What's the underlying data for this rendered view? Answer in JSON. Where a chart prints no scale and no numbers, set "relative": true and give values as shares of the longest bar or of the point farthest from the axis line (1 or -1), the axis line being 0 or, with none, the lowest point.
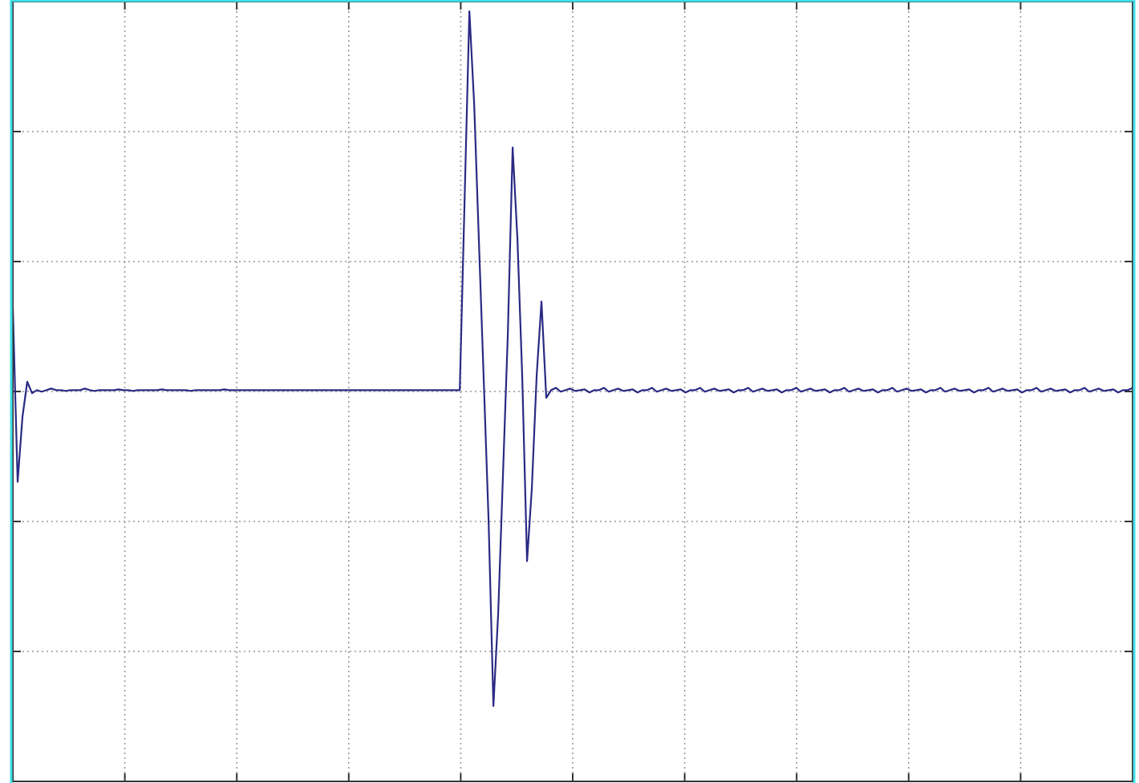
{
  "chart_data": {
    "type": "line",
    "relative": true,
    "grid": true,
    "tick_labels": false,
    "categories": [
      null,
      null,
      null,
      null,
      null,
      null,
      null,
      null,
      null,
      null,
      null,
      null,
      null,
      null,
      null,
      null,
      null,
      null,
      null,
      null,
      null,
      null,
      null,
      null,
      null,
      null,
      null,
      null,
      null,
      null,
      null,
      null,
      null,
      null,
      null,
      null,
      null,
      null,
      null,
      null,
      null,
      null,
      null,
      null,
      null,
      null,
      null,
      null,
      null,
      null,
      null,
      null,
      null,
      null,
      null,
      null,
      null,
      null,
      null,
      null,
      null,
      null,
      null,
      null,
      null,
      null,
      null,
      null,
      null,
      null,
      null,
      null,
      null,
      null,
      null,
      null,
      null,
      null,
      null,
      null,
      null,
      null,
      null,
      null,
      null,
      null,
      null,
      null,
      null,
      null,
      null,
      null,
      null,
      null,
      null,
      null,
      null,
      null,
      null,
      null,
      null,
      null,
      null,
      null,
      null,
      null,
      null,
      null,
      null,
      null,
      null,
      null,
      null,
      null,
      null,
      null,
      null,
      null,
      null,
      null,
      null,
      null,
      null,
      null,
      null,
      null,
      null,
      null,
      null,
      null,
      null,
      null,
      null,
      null,
      null,
      null,
      null,
      null,
      null,
      null,
      null,
      null,
      null,
      null,
      null,
      null,
      null,
      null,
      null,
      null,
      null,
      null,
      null,
      null,
      null,
      null,
      null,
      null,
      null,
      null,
      null,
      null,
      null,
      null,
      null,
      null,
      null,
      null,
      null,
      null,
      null,
      null,
      null,
      null,
      null,
      null,
      null,
      null,
      null,
      null,
      null,
      null,
      null,
      null,
      null,
      null,
      null,
      null,
      null,
      null,
      null,
      null,
      null,
      null,
      null,
      null,
      null,
      null,
      null,
      null,
      null,
      null,
      null,
      null,
      null,
      null,
      null,
      null,
      null,
      null,
      null,
      null,
      null,
      null,
      null,
      null,
      null,
      null,
      null,
      null,
      null,
      null,
      null,
      null,
      null,
      null,
      null,
      null,
      null,
      null,
      null,
      null,
      null,
      null
    ],
    "series": [
      {
        "color": "#2a2a84",
        "values": [
          0.615,
          0.389,
          0.473,
          0.519,
          0.504,
          0.508,
          0.506,
          0.508,
          0.51,
          0.508,
          0.508,
          0.507,
          0.508,
          0.508,
          0.508,
          0.51,
          0.508,
          0.507,
          0.508,
          0.508,
          0.508,
          0.508,
          0.509,
          0.508,
          0.508,
          0.507,
          0.508,
          0.508,
          0.508,
          0.508,
          0.508,
          0.509,
          0.508,
          0.508,
          0.508,
          0.508,
          0.508,
          0.507,
          0.508,
          0.508,
          0.508,
          0.508,
          0.508,
          0.508,
          0.509,
          0.508,
          0.508,
          0.508,
          0.508,
          0.508,
          0.508,
          0.508,
          0.508,
          0.508,
          0.508,
          0.508,
          0.508,
          0.508,
          0.508,
          0.508,
          0.508,
          0.508,
          0.508,
          0.508,
          0.508,
          0.508,
          0.508,
          0.508,
          0.508,
          0.508,
          0.508,
          0.508,
          0.508,
          0.508,
          0.508,
          0.508,
          0.508,
          0.508,
          0.508,
          0.508,
          0.508,
          0.508,
          0.508,
          0.508,
          0.508,
          0.508,
          0.508,
          0.508,
          0.508,
          0.508,
          0.508,
          0.508,
          0.508,
          0.508,
          0.754,
          1,
          0.879,
          0.698,
          0.519,
          0.338,
          0.098,
          0.219,
          0.4,
          0.581,
          0.823,
          0.704,
          0.525,
          0.286,
          0.381,
          0.527,
          0.623,
          0.498,
          0.508,
          0.511,
          0.506,
          0.508,
          0.51,
          0.507,
          0.508,
          0.509,
          0.505,
          0.508,
          0.508,
          0.511,
          0.506,
          0.508,
          0.51,
          0.507,
          0.508,
          0.509,
          0.505,
          0.508,
          0.508,
          0.511,
          0.506,
          0.508,
          0.51,
          0.507,
          0.508,
          0.509,
          0.505,
          0.508,
          0.508,
          0.511,
          0.506,
          0.508,
          0.51,
          0.507,
          0.508,
          0.509,
          0.505,
          0.508,
          0.508,
          0.511,
          0.506,
          0.508,
          0.51,
          0.507,
          0.508,
          0.509,
          0.505,
          0.508,
          0.508,
          0.511,
          0.506,
          0.508,
          0.51,
          0.507,
          0.508,
          0.509,
          0.505,
          0.508,
          0.508,
          0.511,
          0.506,
          0.508,
          0.51,
          0.507,
          0.508,
          0.509,
          0.505,
          0.508,
          0.508,
          0.511,
          0.506,
          0.508,
          0.51,
          0.507,
          0.508,
          0.509,
          0.505,
          0.508,
          0.508,
          0.511,
          0.506,
          0.508,
          0.51,
          0.507,
          0.508,
          0.509,
          0.505,
          0.508,
          0.508,
          0.511,
          0.506,
          0.508,
          0.51,
          0.507,
          0.508,
          0.509,
          0.505,
          0.508,
          0.508,
          0.511,
          0.506,
          0.508,
          0.51,
          0.507,
          0.508,
          0.509,
          0.505,
          0.508,
          0.508,
          0.511,
          0.506,
          0.508,
          0.51,
          0.507,
          0.508,
          0.509,
          0.505,
          0.508,
          0.508,
          0.511
        ]
      }
    ]
  }
}
